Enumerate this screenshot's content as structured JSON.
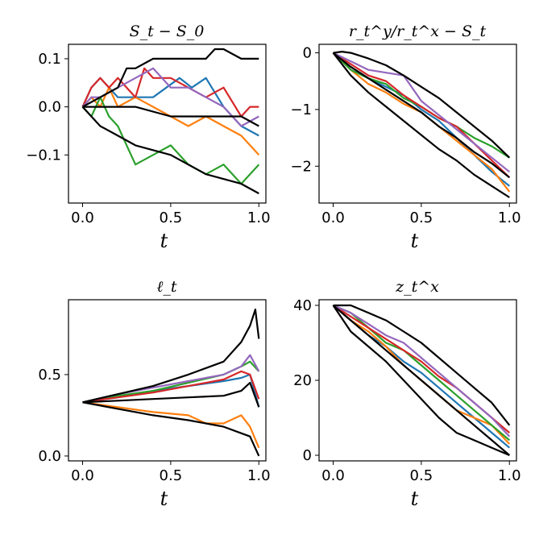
{
  "chart_data": [
    {
      "type": "line",
      "title": "S_t − S_0",
      "title_parts": {
        "main": "S",
        "sub": "t",
        "mid": " − S",
        "sub2": "0"
      },
      "xlabel": "t",
      "xlim": [
        -0.08,
        1.04
      ],
      "ylim": [
        -0.2,
        0.13
      ],
      "xticks": [
        0.0,
        0.5,
        1.0
      ],
      "xtick_labels": [
        "0.0",
        "0.5",
        "1.0"
      ],
      "yticks": [
        0.1,
        0.0,
        -0.1
      ],
      "ytick_labels": [
        "0.1",
        "0.0",
        "−0.1"
      ],
      "series": [
        {
          "name": "path-blue",
          "color": "#1f77b4",
          "x": [
            0,
            0.05,
            0.1,
            0.2,
            0.3,
            0.4,
            0.55,
            0.62,
            0.7,
            0.8,
            0.9,
            1.0
          ],
          "y": [
            0,
            0.04,
            0.06,
            0.02,
            0.02,
            0.02,
            0.06,
            0.04,
            0.06,
            0.0,
            -0.04,
            -0.06
          ]
        },
        {
          "name": "path-orange",
          "color": "#ff7f0e",
          "x": [
            0,
            0.05,
            0.1,
            0.15,
            0.2,
            0.3,
            0.4,
            0.5,
            0.6,
            0.7,
            0.8,
            0.9,
            1.0
          ],
          "y": [
            0,
            0.02,
            0.0,
            0.04,
            0.0,
            0.02,
            0.0,
            -0.02,
            -0.04,
            -0.02,
            -0.04,
            -0.06,
            -0.1
          ]
        },
        {
          "name": "path-green",
          "color": "#2ca02c",
          "x": [
            0,
            0.05,
            0.1,
            0.15,
            0.2,
            0.25,
            0.3,
            0.4,
            0.5,
            0.6,
            0.7,
            0.8,
            0.9,
            1.0
          ],
          "y": [
            0,
            -0.02,
            0.02,
            -0.02,
            -0.04,
            -0.08,
            -0.12,
            -0.1,
            -0.08,
            -0.12,
            -0.14,
            -0.12,
            -0.16,
            -0.12
          ]
        },
        {
          "name": "path-red",
          "color": "#d62728",
          "x": [
            0,
            0.05,
            0.1,
            0.15,
            0.2,
            0.3,
            0.35,
            0.4,
            0.5,
            0.6,
            0.7,
            0.8,
            0.9,
            0.95,
            1.0
          ],
          "y": [
            0,
            0.04,
            0.06,
            0.04,
            0.06,
            0.02,
            0.08,
            0.06,
            0.06,
            0.04,
            0.02,
            0.04,
            -0.02,
            0.0,
            0.0
          ]
        },
        {
          "name": "path-purple",
          "color": "#9467bd",
          "x": [
            0,
            0.05,
            0.1,
            0.2,
            0.3,
            0.4,
            0.5,
            0.6,
            0.7,
            0.8,
            0.9,
            1.0
          ],
          "y": [
            0,
            0.02,
            0.02,
            0.04,
            0.06,
            0.08,
            0.04,
            0.04,
            0.02,
            0.0,
            -0.04,
            -0.02
          ]
        },
        {
          "name": "band-upper",
          "color": "#000000",
          "x": [
            0,
            0.1,
            0.2,
            0.25,
            0.3,
            0.4,
            0.5,
            0.6,
            0.7,
            0.75,
            0.8,
            0.9,
            1.0
          ],
          "y": [
            0,
            0.02,
            0.04,
            0.08,
            0.08,
            0.1,
            0.1,
            0.1,
            0.1,
            0.12,
            0.12,
            0.1,
            0.1
          ]
        },
        {
          "name": "band-middle",
          "color": "#000000",
          "x": [
            0,
            0.1,
            0.3,
            0.5,
            0.7,
            0.9,
            1.0
          ],
          "y": [
            0,
            0.0,
            0.0,
            -0.02,
            -0.02,
            -0.02,
            -0.04
          ]
        },
        {
          "name": "band-lower",
          "color": "#000000",
          "x": [
            0,
            0.1,
            0.2,
            0.3,
            0.5,
            0.7,
            0.9,
            1.0
          ],
          "y": [
            0,
            -0.04,
            -0.06,
            -0.08,
            -0.1,
            -0.14,
            -0.16,
            -0.18
          ]
        }
      ]
    },
    {
      "type": "line",
      "title": "r_t^y/r_t^x − S_t",
      "xlabel": "t",
      "xlim": [
        -0.08,
        1.04
      ],
      "ylim": [
        -2.65,
        0.15
      ],
      "xticks": [
        0.0,
        0.5,
        1.0
      ],
      "xtick_labels": [
        "0.0",
        "0.5",
        "1.0"
      ],
      "yticks": [
        0,
        -1,
        -2
      ],
      "ytick_labels": [
        "0",
        "−1",
        "−2"
      ],
      "series": [
        {
          "name": "path-blue",
          "color": "#1f77b4",
          "x": [
            0,
            0.1,
            0.2,
            0.3,
            0.4,
            0.5,
            0.6,
            0.7,
            0.8,
            0.9,
            1.0
          ],
          "y": [
            0,
            -0.25,
            -0.45,
            -0.6,
            -0.75,
            -1.0,
            -1.2,
            -1.5,
            -1.8,
            -2.1,
            -2.35
          ]
        },
        {
          "name": "path-orange",
          "color": "#ff7f0e",
          "x": [
            0,
            0.1,
            0.2,
            0.3,
            0.4,
            0.5,
            0.6,
            0.7,
            0.8,
            0.9,
            1.0
          ],
          "y": [
            0,
            -0.3,
            -0.55,
            -0.7,
            -0.9,
            -1.05,
            -1.3,
            -1.55,
            -1.8,
            -2.05,
            -2.45
          ]
        },
        {
          "name": "path-green",
          "color": "#2ca02c",
          "x": [
            0,
            0.1,
            0.2,
            0.3,
            0.4,
            0.5,
            0.6,
            0.7,
            0.8,
            0.9,
            1.0
          ],
          "y": [
            0,
            -0.3,
            -0.45,
            -0.55,
            -0.8,
            -0.95,
            -1.15,
            -1.3,
            -1.5,
            -1.65,
            -1.85
          ]
        },
        {
          "name": "path-red",
          "color": "#d62728",
          "x": [
            0,
            0.1,
            0.2,
            0.3,
            0.4,
            0.5,
            0.6,
            0.7,
            0.8,
            0.9,
            1.0
          ],
          "y": [
            0,
            -0.2,
            -0.4,
            -0.5,
            -0.75,
            -0.95,
            -1.15,
            -1.3,
            -1.6,
            -1.9,
            -2.2
          ]
        },
        {
          "name": "path-purple",
          "color": "#9467bd",
          "x": [
            0,
            0.1,
            0.2,
            0.3,
            0.4,
            0.5,
            0.6,
            0.7,
            0.8,
            0.9,
            1.0
          ],
          "y": [
            0,
            -0.15,
            -0.3,
            -0.35,
            -0.4,
            -0.85,
            -1.1,
            -1.35,
            -1.6,
            -1.85,
            -2.1
          ]
        },
        {
          "name": "band-upper",
          "color": "#000000",
          "x": [
            0,
            0.05,
            0.1,
            0.2,
            0.3,
            0.4,
            0.5,
            0.6,
            0.7,
            0.8,
            0.9,
            1.0
          ],
          "y": [
            0,
            0.02,
            0.0,
            -0.1,
            -0.22,
            -0.4,
            -0.6,
            -0.8,
            -1.05,
            -1.3,
            -1.55,
            -1.85
          ]
        },
        {
          "name": "band-middle",
          "color": "#000000",
          "x": [
            0,
            0.1,
            0.2,
            0.3,
            0.4,
            0.5,
            0.6,
            0.7,
            0.8,
            0.9,
            1.0
          ],
          "y": [
            0,
            -0.25,
            -0.45,
            -0.65,
            -0.85,
            -1.05,
            -1.3,
            -1.5,
            -1.75,
            -1.95,
            -2.2
          ]
        },
        {
          "name": "band-lower",
          "color": "#000000",
          "x": [
            0,
            0.1,
            0.2,
            0.3,
            0.4,
            0.5,
            0.6,
            0.7,
            0.8,
            0.9,
            1.0
          ],
          "y": [
            0,
            -0.4,
            -0.7,
            -0.95,
            -1.2,
            -1.45,
            -1.7,
            -1.9,
            -2.15,
            -2.35,
            -2.55
          ]
        }
      ]
    },
    {
      "type": "line",
      "title": "ℓ_t",
      "xlabel": "t",
      "xlim": [
        -0.08,
        1.04
      ],
      "ylim": [
        -0.03,
        0.96
      ],
      "xticks": [
        0.0,
        0.5,
        1.0
      ],
      "xtick_labels": [
        "0.0",
        "0.5",
        "1.0"
      ],
      "yticks": [
        0.5,
        0.0
      ],
      "ytick_labels": [
        "0.5",
        "0.0"
      ],
      "series": [
        {
          "name": "path-blue",
          "color": "#1f77b4",
          "x": [
            0,
            0.2,
            0.4,
            0.6,
            0.8,
            0.9,
            0.95,
            1.0
          ],
          "y": [
            0.33,
            0.36,
            0.4,
            0.43,
            0.46,
            0.48,
            0.5,
            0.3
          ]
        },
        {
          "name": "path-orange",
          "color": "#ff7f0e",
          "x": [
            0,
            0.2,
            0.4,
            0.6,
            0.7,
            0.8,
            0.9,
            0.95,
            1.0
          ],
          "y": [
            0.33,
            0.3,
            0.27,
            0.25,
            0.2,
            0.2,
            0.25,
            0.18,
            0.05
          ]
        },
        {
          "name": "path-green",
          "color": "#2ca02c",
          "x": [
            0,
            0.2,
            0.4,
            0.6,
            0.8,
            0.9,
            0.95,
            1.0
          ],
          "y": [
            0.33,
            0.37,
            0.4,
            0.45,
            0.5,
            0.55,
            0.58,
            0.52
          ]
        },
        {
          "name": "path-red",
          "color": "#d62728",
          "x": [
            0,
            0.2,
            0.4,
            0.6,
            0.8,
            0.9,
            0.95,
            1.0
          ],
          "y": [
            0.33,
            0.36,
            0.39,
            0.43,
            0.47,
            0.52,
            0.5,
            0.35
          ]
        },
        {
          "name": "path-purple",
          "color": "#9467bd",
          "x": [
            0,
            0.2,
            0.4,
            0.6,
            0.8,
            0.9,
            0.95,
            1.0
          ],
          "y": [
            0.33,
            0.38,
            0.42,
            0.46,
            0.5,
            0.55,
            0.62,
            0.52
          ]
        },
        {
          "name": "band-upper",
          "color": "#000000",
          "x": [
            0,
            0.2,
            0.4,
            0.6,
            0.8,
            0.9,
            0.95,
            0.98,
            1.0
          ],
          "y": [
            0.33,
            0.38,
            0.43,
            0.5,
            0.58,
            0.7,
            0.8,
            0.9,
            0.72
          ]
        },
        {
          "name": "band-middle",
          "color": "#000000",
          "x": [
            0,
            0.2,
            0.4,
            0.6,
            0.8,
            0.9,
            0.95,
            1.0
          ],
          "y": [
            0.33,
            0.34,
            0.35,
            0.36,
            0.37,
            0.4,
            0.45,
            0.3
          ]
        },
        {
          "name": "band-lower",
          "color": "#000000",
          "x": [
            0,
            0.2,
            0.4,
            0.6,
            0.8,
            0.9,
            0.95,
            1.0
          ],
          "y": [
            0.33,
            0.29,
            0.25,
            0.22,
            0.18,
            0.14,
            0.12,
            0.0
          ]
        }
      ]
    },
    {
      "type": "line",
      "title": "z_t^x",
      "xlabel": "t",
      "xlim": [
        -0.08,
        1.04
      ],
      "ylim": [
        -1.5,
        41.5
      ],
      "xticks": [
        0.0,
        0.5,
        1.0
      ],
      "xtick_labels": [
        "0.0",
        "0.5",
        "1.0"
      ],
      "yticks": [
        40,
        20,
        0
      ],
      "ytick_labels": [
        "40",
        "20",
        "0"
      ],
      "series": [
        {
          "name": "path-blue",
          "color": "#1f77b4",
          "x": [
            0,
            0.1,
            0.2,
            0.3,
            0.4,
            0.5,
            0.6,
            0.7,
            0.8,
            0.9,
            1.0
          ],
          "y": [
            40,
            36,
            32,
            29,
            25,
            22,
            18,
            14,
            10,
            6,
            2
          ]
        },
        {
          "name": "path-orange",
          "color": "#ff7f0e",
          "x": [
            0,
            0.1,
            0.2,
            0.3,
            0.4,
            0.5,
            0.6,
            0.7,
            0.8,
            0.9,
            1.0
          ],
          "y": [
            40,
            36,
            33,
            29,
            24,
            20,
            16,
            12,
            10,
            8,
            3
          ]
        },
        {
          "name": "path-green",
          "color": "#2ca02c",
          "x": [
            0,
            0.1,
            0.2,
            0.3,
            0.4,
            0.5,
            0.6,
            0.7,
            0.8,
            0.9,
            1.0
          ],
          "y": [
            40,
            38,
            34,
            30,
            28,
            24,
            20,
            16,
            12,
            8,
            4
          ]
        },
        {
          "name": "path-red",
          "color": "#d62728",
          "x": [
            0,
            0.1,
            0.2,
            0.3,
            0.4,
            0.5,
            0.6,
            0.7,
            0.8,
            0.9,
            1.0
          ],
          "y": [
            40,
            37,
            34,
            31,
            28,
            25,
            21,
            18,
            14,
            10,
            6
          ]
        },
        {
          "name": "path-purple",
          "color": "#9467bd",
          "x": [
            0,
            0.1,
            0.2,
            0.3,
            0.4,
            0.5,
            0.6,
            0.7,
            0.8,
            0.9,
            1.0
          ],
          "y": [
            40,
            38,
            35,
            32,
            30,
            26,
            22,
            18,
            14,
            10,
            5
          ]
        },
        {
          "name": "band-upper",
          "color": "#000000",
          "x": [
            0,
            0.1,
            0.2,
            0.3,
            0.4,
            0.5,
            0.6,
            0.7,
            0.8,
            0.9,
            1.0
          ],
          "y": [
            40,
            40,
            38,
            36,
            33,
            30,
            26,
            22,
            18,
            14,
            8
          ]
        },
        {
          "name": "band-middle",
          "color": "#000000",
          "x": [
            0,
            0.1,
            0.2,
            0.3,
            0.4,
            0.5,
            0.6,
            0.7,
            0.8,
            0.9,
            1.0
          ],
          "y": [
            40,
            36,
            32,
            28,
            24,
            20,
            16,
            12,
            8,
            4,
            0
          ]
        },
        {
          "name": "band-lower",
          "color": "#000000",
          "x": [
            0,
            0.1,
            0.2,
            0.3,
            0.4,
            0.5,
            0.6,
            0.7,
            0.8,
            0.9,
            1.0
          ],
          "y": [
            40,
            33,
            29,
            25,
            20,
            15,
            10,
            6,
            4,
            2,
            0
          ]
        }
      ]
    }
  ]
}
